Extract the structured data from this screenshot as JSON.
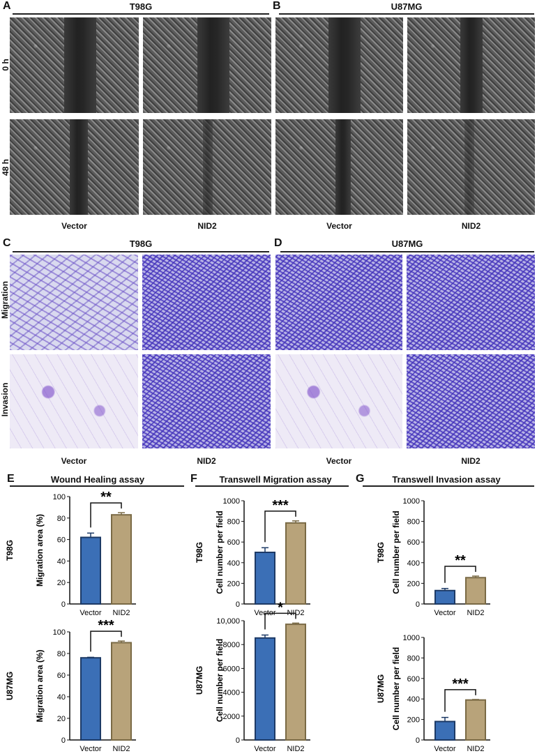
{
  "panels": {
    "A": {
      "letter": "A",
      "title": "T98G"
    },
    "B": {
      "letter": "B",
      "title": "U87MG"
    },
    "C": {
      "letter": "C",
      "title": "T98G"
    },
    "D": {
      "letter": "D",
      "title": "U87MG"
    },
    "E": {
      "letter": "E",
      "title": "Wound Healing assay"
    },
    "F": {
      "letter": "F",
      "title": "Transwell Migration assay"
    },
    "G": {
      "letter": "G",
      "title": "Transwell Invasion assay"
    }
  },
  "wound_rows": [
    "0 h",
    "48 h"
  ],
  "transwell_rows": [
    "Migration",
    "Invasion"
  ],
  "col_labels": [
    "Vector",
    "NID2",
    "Vector",
    "NID2"
  ],
  "colors": {
    "vector": "#3b6fb6",
    "nid2": "#b8a37a",
    "vector_edge": "#1d3a66",
    "nid2_edge": "#7a6a45"
  },
  "chart_data": [
    {
      "id": "E1",
      "type": "bar",
      "row_label": "T98G",
      "ylabel": "Migration area (%)",
      "categories": [
        "Vector",
        "NID2"
      ],
      "values": [
        62,
        83
      ],
      "errors": [
        4,
        2
      ],
      "ylim": [
        0,
        100
      ],
      "yticks": [
        "0",
        "20",
        "40",
        "60",
        "80",
        "100"
      ],
      "significance": "**"
    },
    {
      "id": "E2",
      "type": "bar",
      "row_label": "U87MG",
      "ylabel": "Migration area (%)",
      "categories": [
        "Vector",
        "NID2"
      ],
      "values": [
        76,
        90
      ],
      "errors": [
        0.5,
        1.5
      ],
      "ylim": [
        0,
        100
      ],
      "yticks": [
        "0",
        "20",
        "40",
        "60",
        "80",
        "100"
      ],
      "significance": "***"
    },
    {
      "id": "F1",
      "type": "bar",
      "row_label": "T98G",
      "ylabel": "Cell number per field",
      "categories": [
        "Vector",
        "NID2"
      ],
      "values": [
        500,
        785
      ],
      "errors": [
        45,
        20
      ],
      "ylim": [
        0,
        1000
      ],
      "yticks": [
        "0",
        "200",
        "400",
        "600",
        "800",
        "1000"
      ],
      "significance": "***"
    },
    {
      "id": "F2",
      "type": "bar",
      "row_label": "U87MG",
      "ylabel": "Cell number per field",
      "categories": [
        "Vector",
        "NID2"
      ],
      "values": [
        8550,
        9700
      ],
      "errors": [
        250,
        100
      ],
      "ylim": [
        0,
        10000
      ],
      "yticks": [
        "0",
        "2000",
        "4000",
        "6000",
        "8000",
        "10,000"
      ],
      "significance": "*"
    },
    {
      "id": "G1",
      "type": "bar",
      "row_label": "T98G",
      "ylabel": "Cell number per field",
      "categories": [
        "Vector",
        "NID2"
      ],
      "values": [
        130,
        255
      ],
      "errors": [
        20,
        15
      ],
      "ylim": [
        0,
        1000
      ],
      "yticks": [
        "0",
        "200",
        "400",
        "600",
        "800",
        "1000"
      ],
      "significance": "**"
    },
    {
      "id": "G2",
      "type": "bar",
      "row_label": "U87MG",
      "ylabel": "Cell number per field",
      "categories": [
        "Vector",
        "NID2"
      ],
      "values": [
        180,
        390
      ],
      "errors": [
        40,
        5
      ],
      "ylim": [
        0,
        1000
      ],
      "yticks": [
        "0",
        "200",
        "400",
        "600",
        "800",
        "1000"
      ],
      "significance": "***"
    }
  ]
}
